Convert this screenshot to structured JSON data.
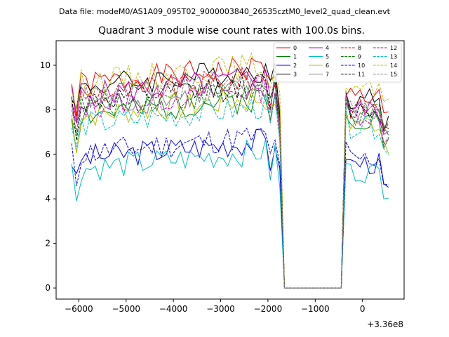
{
  "figure": {
    "supertitle": "Data file: modeM0/AS1A09_095T02_9000003840_26535cztM0_level2_quad_clean.evt",
    "offset_label": "+3.36e8"
  },
  "chart_data": {
    "type": "line",
    "title": "Quadrant 3 module wise count rates with 100.0s bins.",
    "xlabel": "",
    "ylabel": "",
    "x_offset": 336000000,
    "xlim": [
      -6480,
      880
    ],
    "ylim": [
      -0.5,
      11.1
    ],
    "xticks": [
      -6000,
      -5000,
      -4000,
      -3000,
      -2000,
      -1000,
      0
    ],
    "xtick_labels": [
      "−6000",
      "−5000",
      "−4000",
      "−3000",
      "−2000",
      "−1000",
      "0"
    ],
    "yticks": [
      0,
      2,
      4,
      6,
      8,
      10
    ],
    "ytick_labels": [
      "0",
      "2",
      "4",
      "6",
      "8",
      "10"
    ],
    "grid": false,
    "legend_position": "top-right",
    "x_start": -6150,
    "x_step": 100,
    "gap": {
      "from": -1650,
      "to": -450
    },
    "series": [
      {
        "name": "0",
        "color": "#ff0000",
        "dash": "solid",
        "base": 9.1,
        "post": 8.6,
        "seed": 1
      },
      {
        "name": "1",
        "color": "#008000",
        "dash": "solid",
        "base": 7.7,
        "post": 7.6,
        "seed": 2
      },
      {
        "name": "2",
        "color": "#0000ff",
        "dash": "solid",
        "base": 5.8,
        "post": 5.6,
        "seed": 3
      },
      {
        "name": "3",
        "color": "#000000",
        "dash": "solid",
        "base": 9.0,
        "post": 8.5,
        "seed": 4
      },
      {
        "name": "4",
        "color": "#bf00bf",
        "dash": "solid",
        "base": 8.6,
        "post": 8.0,
        "seed": 5
      },
      {
        "name": "5",
        "color": "#00bfbf",
        "dash": "solid",
        "base": 5.3,
        "post": 5.2,
        "seed": 6
      },
      {
        "name": "6",
        "color": "#bfbf00",
        "dash": "solid",
        "base": 7.7,
        "post": 7.4,
        "seed": 7
      },
      {
        "name": "7",
        "color": "#808080",
        "dash": "solid",
        "base": 8.1,
        "post": 7.7,
        "seed": 8
      },
      {
        "name": "8",
        "color": "#ff0000",
        "dash": "dashed",
        "base": 8.6,
        "post": 8.1,
        "seed": 9
      },
      {
        "name": "9",
        "color": "#008000",
        "dash": "dashed",
        "base": 8.1,
        "post": 7.8,
        "seed": 10
      },
      {
        "name": "10",
        "color": "#0000ff",
        "dash": "dashed",
        "base": 6.0,
        "post": 5.8,
        "seed": 11
      },
      {
        "name": "11",
        "color": "#000000",
        "dash": "dashed",
        "base": 8.3,
        "post": 8.0,
        "seed": 12
      },
      {
        "name": "12",
        "color": "#bf00bf",
        "dash": "dashed",
        "base": 8.1,
        "post": 7.8,
        "seed": 13
      },
      {
        "name": "13",
        "color": "#00bfbf",
        "dash": "dashed",
        "base": 7.3,
        "post": 7.2,
        "seed": 14
      },
      {
        "name": "14",
        "color": "#bfbf00",
        "dash": "dashed",
        "base": 9.2,
        "post": 8.9,
        "seed": 15
      },
      {
        "name": "15",
        "color": "#808080",
        "dash": "dashed",
        "base": 8.5,
        "post": 8.1,
        "seed": 16
      }
    ]
  }
}
